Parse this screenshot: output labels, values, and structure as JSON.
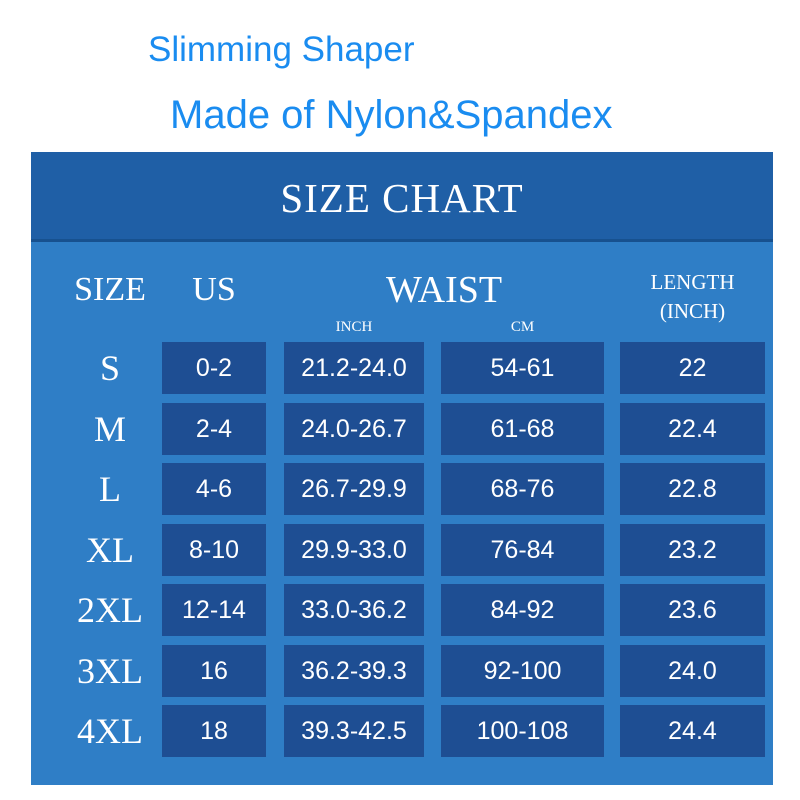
{
  "header": {
    "line1": "Slimming Shaper",
    "line2": "Made of Nylon&Spandex"
  },
  "chart": {
    "title": "SIZE CHART",
    "columns": {
      "size": "SIZE",
      "us": "US",
      "waist": "WAIST",
      "waist_inch": "INCH",
      "waist_cm": "CM",
      "length_line1": "LENGTH",
      "length_line2": "(INCH)"
    },
    "rows": [
      {
        "size": "S",
        "us": "0-2",
        "inch": "21.2-24.0",
        "cm": "54-61",
        "length": "22"
      },
      {
        "size": "M",
        "us": "2-4",
        "inch": "24.0-26.7",
        "cm": "61-68",
        "length": "22.4"
      },
      {
        "size": "L",
        "us": "4-6",
        "inch": "26.7-29.9",
        "cm": "68-76",
        "length": "22.8"
      },
      {
        "size": "XL",
        "us": "8-10",
        "inch": "29.9-33.0",
        "cm": "76-84",
        "length": "23.2"
      },
      {
        "size": "2XL",
        "us": "12-14",
        "inch": "33.0-36.2",
        "cm": "84-92",
        "length": "23.6"
      },
      {
        "size": "3XL",
        "us": "16",
        "inch": "36.2-39.3",
        "cm": "92-100",
        "length": "24.0"
      },
      {
        "size": "4XL",
        "us": "18",
        "inch": "39.3-42.5",
        "cm": "100-108",
        "length": "24.4"
      }
    ]
  },
  "colors": {
    "title_text": "#1a8cf0",
    "chart_background": "#2f7ec6",
    "header_band": "#1f5fa6",
    "cell_background": "#1e4e93"
  }
}
